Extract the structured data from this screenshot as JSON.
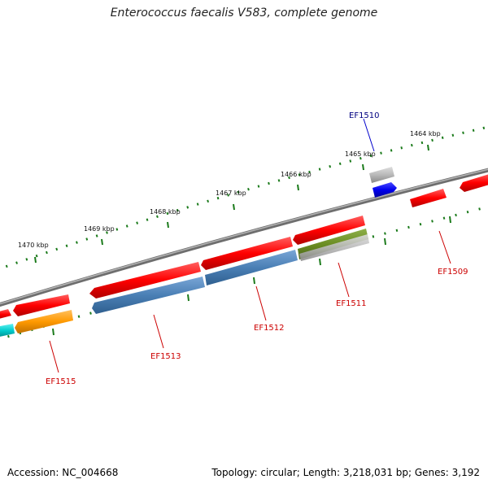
{
  "title": "Enterococcus faecalis V583, complete genome",
  "accession_text": "Accession: NC_004668",
  "stats_text": "Topology: circular; Length: 3,218,031 bp; Genes: 3,192",
  "colors": {
    "forward_gene": "#ff0000",
    "backbone": "#808080",
    "tick": "#1a7a1a",
    "label_red": "#cc0000",
    "label_blue": "#000080"
  },
  "ticks": [
    {
      "label": "1470 kbp"
    },
    {
      "label": "1469 kbp"
    },
    {
      "label": "1468 kbp"
    },
    {
      "label": "1467 kbp"
    },
    {
      "label": "1466 kbp"
    },
    {
      "label": "1465 kbp"
    },
    {
      "label": "1464 kbp"
    }
  ],
  "gene_labels": [
    {
      "name": "EF1510",
      "color": "#000080"
    },
    {
      "name": "EF1509",
      "color": "#cc0000"
    },
    {
      "name": "EF1511",
      "color": "#cc0000"
    },
    {
      "name": "EF1512",
      "color": "#cc0000"
    },
    {
      "name": "EF1513",
      "color": "#cc0000"
    },
    {
      "name": "EF1515",
      "color": "#cc0000"
    }
  ],
  "feature_colors": {
    "red": "#ff1010",
    "steelblue": "#4a7fb5",
    "olive": "#6b8e23",
    "gray": "#b0b0b0",
    "blue": "#0000ee",
    "orange": "#ff9900",
    "cyan": "#00cccc"
  }
}
